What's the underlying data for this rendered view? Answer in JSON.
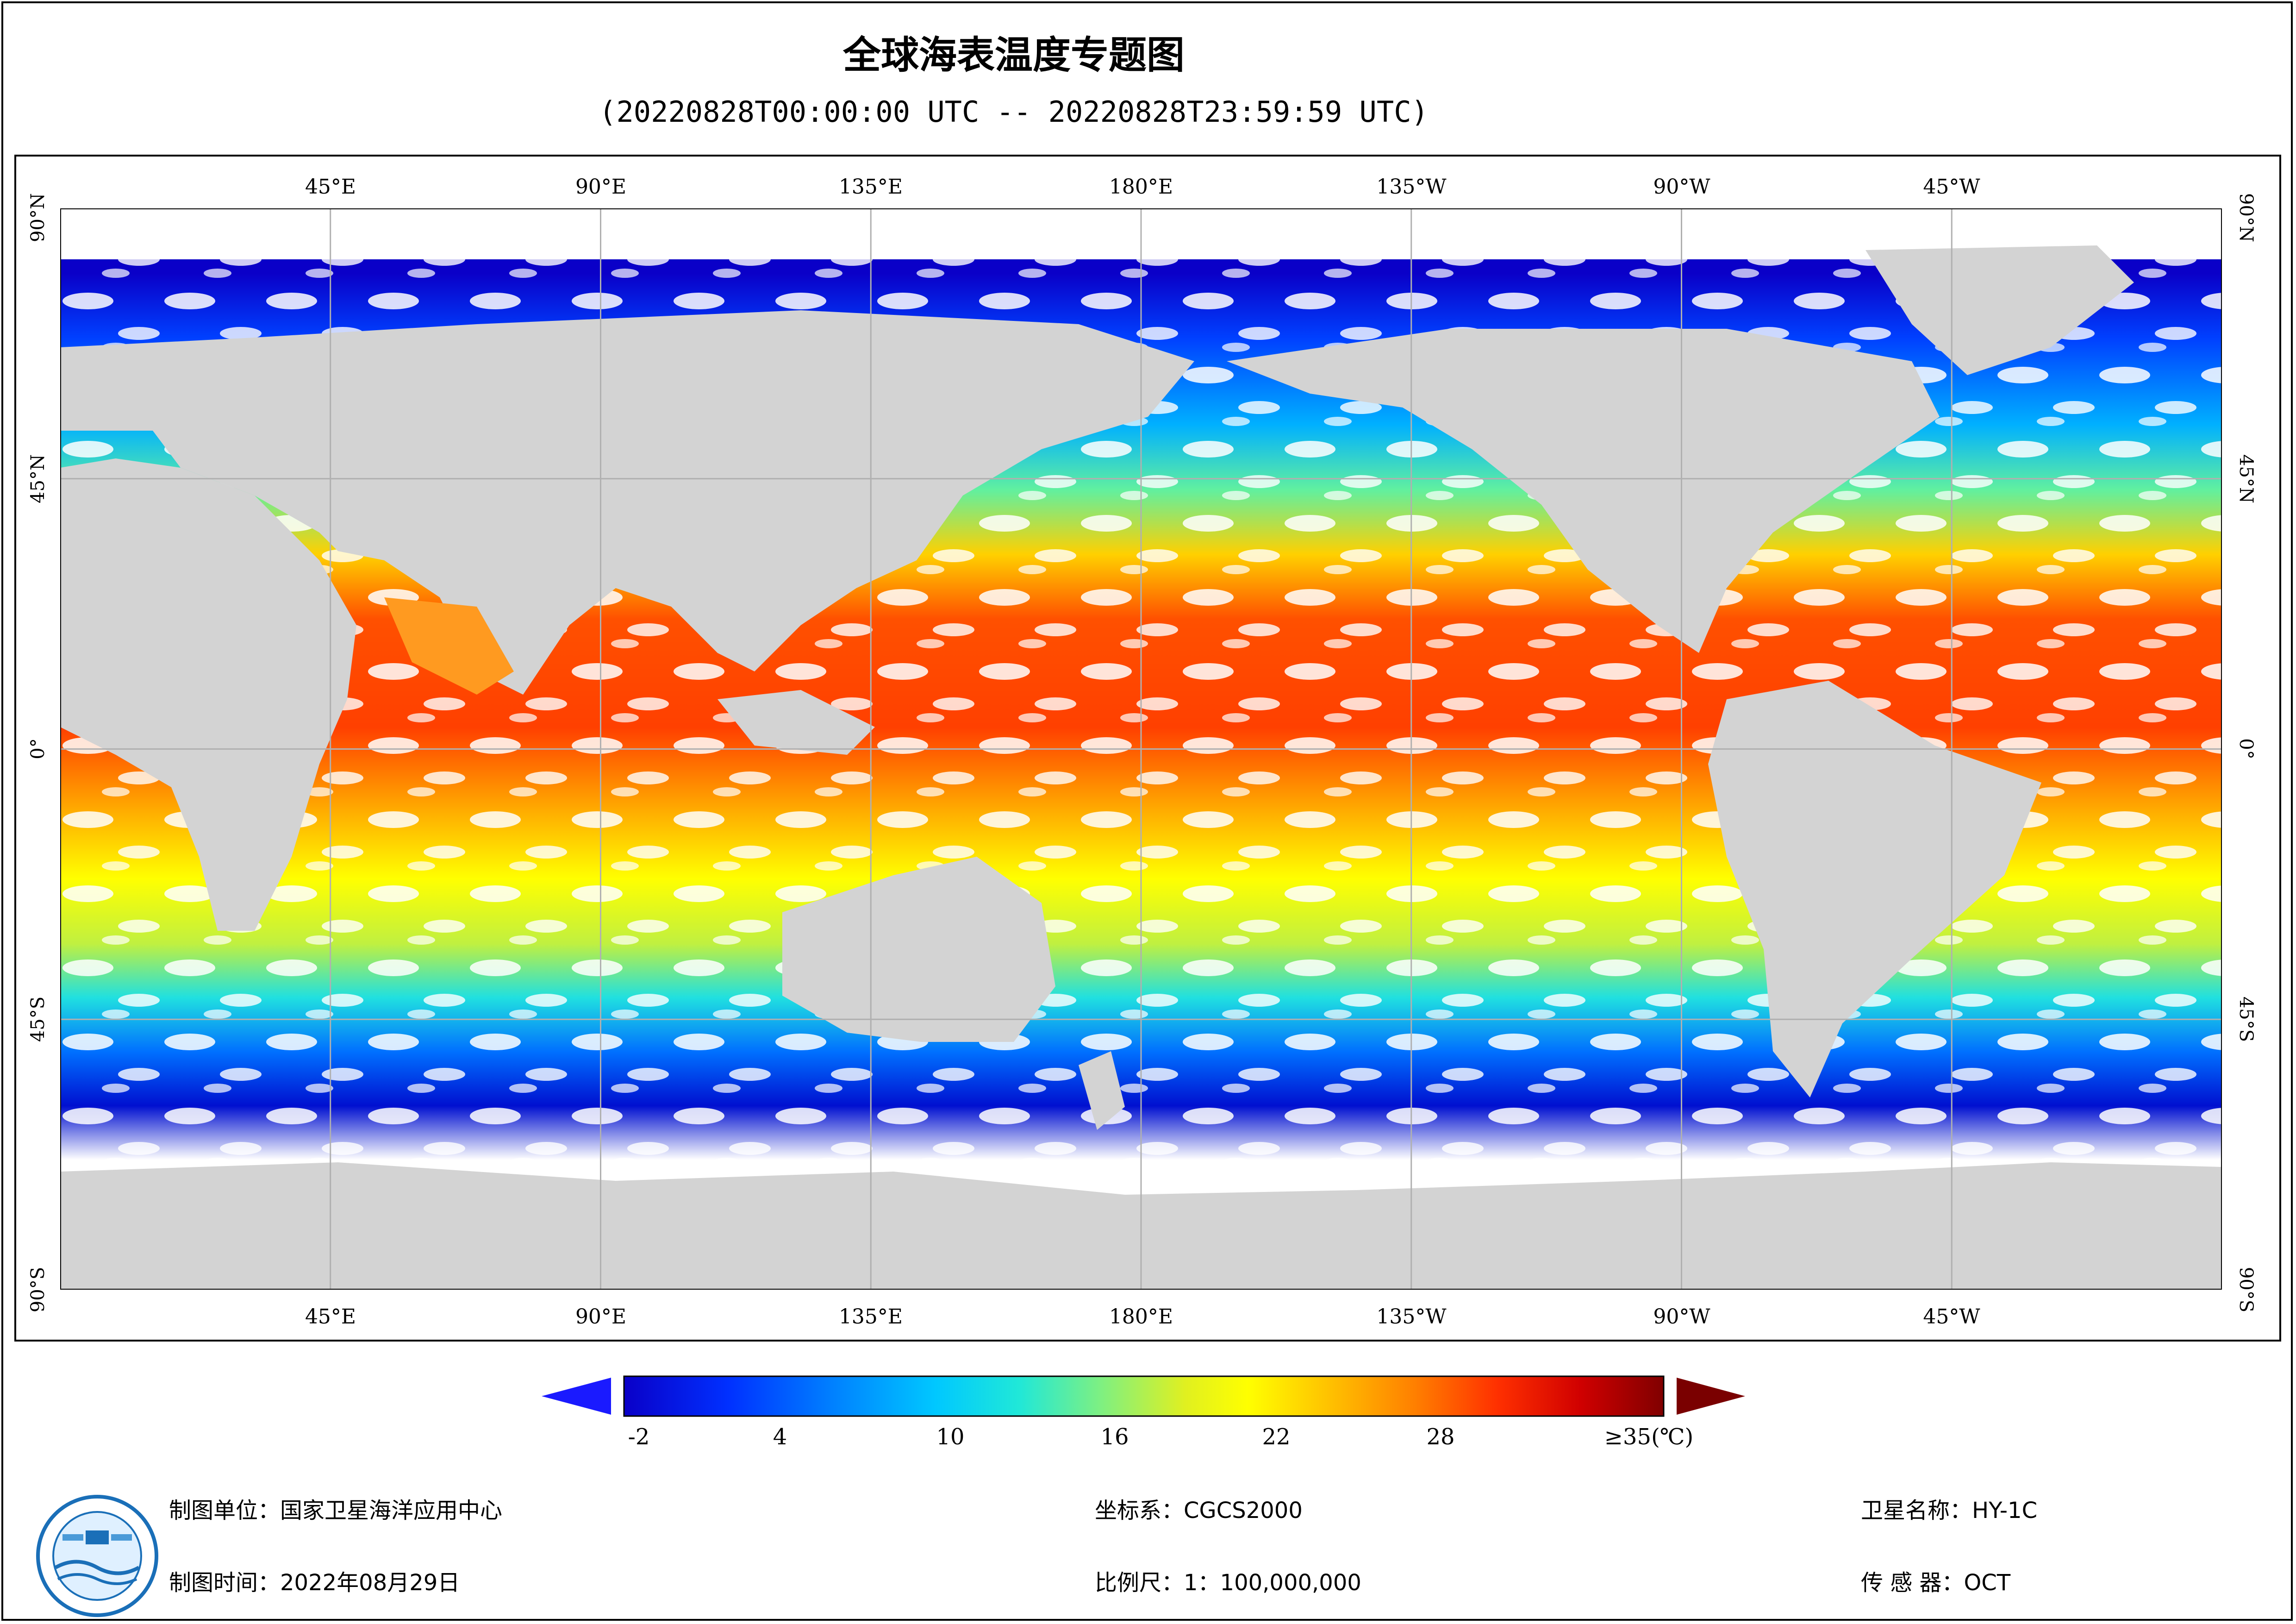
{
  "title": "全球海表温度专题图",
  "subtitle": "(20220828T00:00:00 UTC -- 20220828T23:59:59 UTC)",
  "map": {
    "top_lon_labels": [
      "45°E",
      "90°E",
      "135°E",
      "180°E",
      "135°W",
      "90°W",
      "45°W"
    ],
    "bottom_lon_labels": [
      "45°E",
      "90°E",
      "135°E",
      "180°E",
      "135°W",
      "90°W",
      "45°W"
    ],
    "left_lat_labels": [
      "90°N",
      "45°N",
      "0°",
      "45°S",
      "90°S"
    ],
    "right_lat_labels": [
      "90°N",
      "45°N",
      "0°",
      "45°S",
      "90°S"
    ],
    "land_color": "#d3d3d3",
    "no_data_color": "#ffffff",
    "grid_color": "#b0b0b0"
  },
  "colorbar": {
    "ticks": [
      "-2",
      "4",
      "10",
      "16",
      "22",
      "28",
      "≥35(℃)"
    ],
    "under_color": "#1a1aff",
    "over_color": "#7a0000",
    "colors": [
      "#0a00c8",
      "#0030ff",
      "#0080ff",
      "#00c8ff",
      "#20e8d8",
      "#80f080",
      "#e0f020",
      "#ffff00",
      "#ffc000",
      "#ff8000",
      "#ff3000",
      "#d00000",
      "#800000"
    ]
  },
  "footer": {
    "unit": "制图单位：国家卫星海洋应用中心",
    "date": "制图时间：2022年08月29日",
    "crs": "坐标系：CGCS2000",
    "scale": "比例尺：1：100,000,000",
    "satellite": "卫星名称：HY-1C",
    "sensor": "传 感 器：OCT"
  }
}
